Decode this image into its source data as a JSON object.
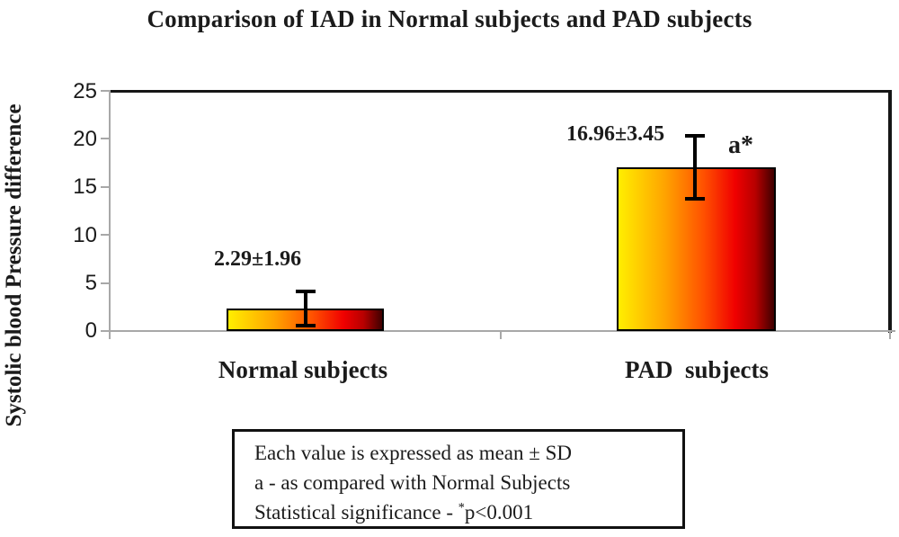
{
  "chart_data": {
    "type": "bar",
    "title": "Comparison of IAD in Normal subjects and PAD subjects",
    "ylabel": "Systolic blood Pressure difference",
    "xlabel": "",
    "categories": [
      "Normal subjects",
      "PAD  subjects"
    ],
    "values": [
      2.29,
      16.96
    ],
    "errors": [
      1.96,
      3.45
    ],
    "value_labels": [
      "2.29±1.96",
      "16.96±3.45"
    ],
    "significance_label": "a*",
    "ylim": [
      0,
      25
    ],
    "yticks": [
      0,
      5,
      10,
      15,
      20,
      25
    ],
    "grid": false,
    "legend": "none",
    "bar_gradient_stops": [
      "#ffee00 0%",
      "#ffa300 30%",
      "#ff5000 55%",
      "#f00000 75%",
      "#b70000 88%",
      "#3f0000 100%"
    ],
    "axis_color": "#a8a8a8",
    "frame_color": "#161616",
    "error_bar_color": "#000000",
    "bar_border_color": "#000000"
  },
  "note_box": {
    "line1": "Each value is expressed as mean ± SD",
    "line2": "a - as compared with Normal Subjects",
    "line3_prefix": "Statistical significance - ",
    "line3_sup": "*",
    "line3_rest": "p<0.001"
  }
}
